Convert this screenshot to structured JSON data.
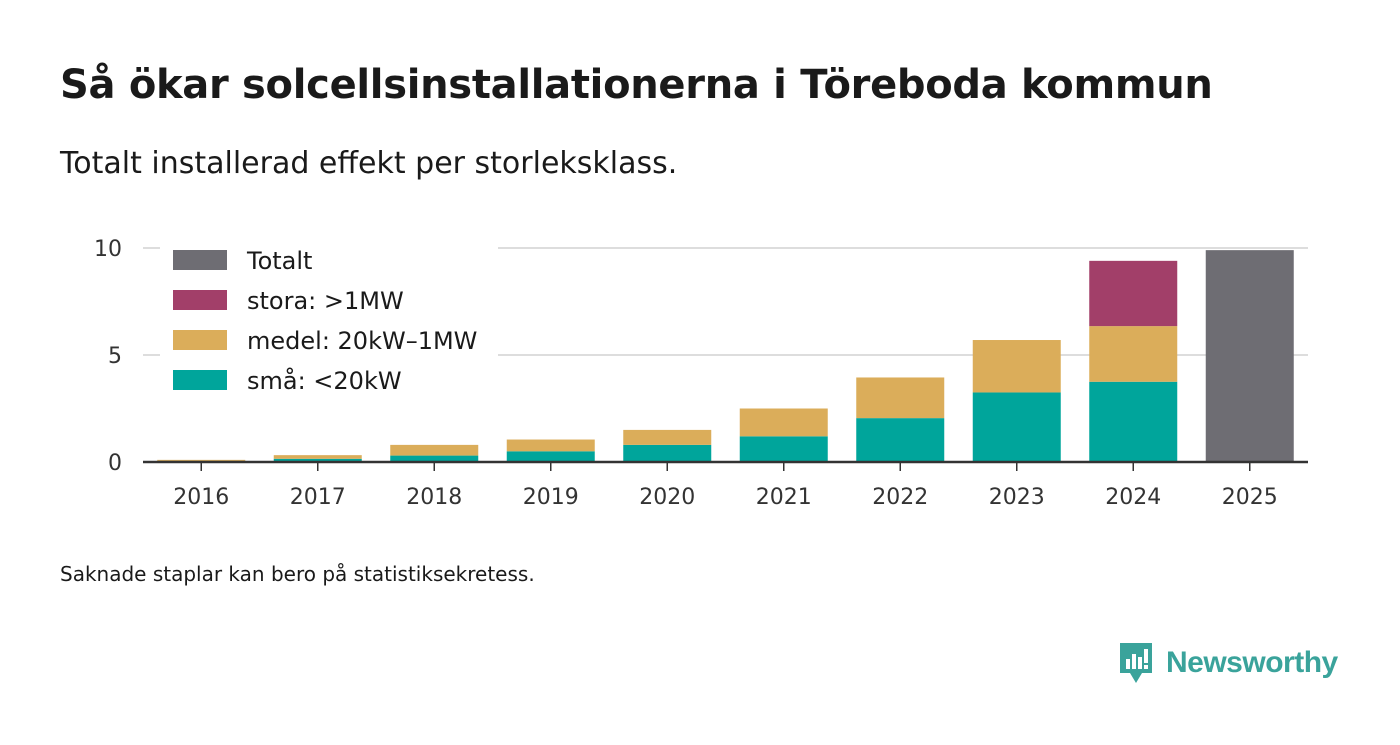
{
  "title": "Så ökar solcellsinstallationerna i Töreboda kommun",
  "subtitle": "Totalt installerad effekt per storleksklass.",
  "note": "Saknade staplar kan bero på statistiksekretess.",
  "brand": {
    "name": "Newsworthy",
    "icon": "newsworthy-logo-icon"
  },
  "colors": {
    "small": "#00a59b",
    "medium": "#dbad5a",
    "large": "#a23f69",
    "total": "#6e6d73",
    "grid": "#dddddd",
    "axis": "#333333"
  },
  "chart_data": {
    "type": "bar",
    "stacked": true,
    "categories": [
      "2016",
      "2017",
      "2018",
      "2019",
      "2020",
      "2021",
      "2022",
      "2023",
      "2024",
      "2025"
    ],
    "series": [
      {
        "key": "small",
        "name": "små: <20kW",
        "values": [
          0.05,
          0.15,
          0.3,
          0.5,
          0.8,
          1.2,
          2.05,
          3.25,
          3.75,
          0
        ]
      },
      {
        "key": "medium",
        "name": "medel: 20kW–1MW",
        "values": [
          0.05,
          0.17,
          0.5,
          0.55,
          0.7,
          1.3,
          1.9,
          2.45,
          2.6,
          0
        ]
      },
      {
        "key": "large",
        "name": "stora: >1MW",
        "values": [
          0,
          0,
          0,
          0,
          0,
          0,
          0,
          0,
          3.05,
          0
        ]
      },
      {
        "key": "total",
        "name": "Totalt",
        "values": [
          0,
          0,
          0,
          0,
          0,
          0,
          0,
          0,
          0,
          9.9
        ]
      }
    ],
    "legend_order": [
      "total",
      "large",
      "medium",
      "small"
    ],
    "yticks": [
      0,
      5,
      10
    ],
    "ylim": [
      0,
      10
    ],
    "xlabel": "",
    "ylabel": "",
    "legend_position": "top-left",
    "grid": true
  }
}
